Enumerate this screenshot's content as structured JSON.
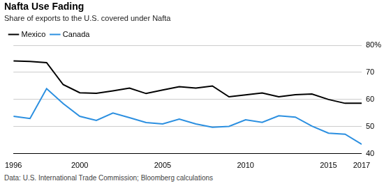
{
  "chart_data": {
    "type": "line",
    "title": "Nafta Use Fading",
    "subtitle": "Share of exports to the U.S. covered under Nafta",
    "source": "Data: U.S. International Trade Commission; Bloomberg calculations",
    "x": [
      1996,
      1997,
      1998,
      1999,
      2000,
      2001,
      2002,
      2003,
      2004,
      2005,
      2006,
      2007,
      2008,
      2009,
      2010,
      2011,
      2012,
      2013,
      2014,
      2015,
      2016,
      2017
    ],
    "series": [
      {
        "name": "Mexico",
        "color": "#000000",
        "values": [
          74.2,
          74.0,
          73.6,
          65.5,
          62.5,
          62.3,
          63.2,
          64.2,
          62.2,
          63.5,
          64.7,
          64.2,
          65.0,
          61.0,
          61.7,
          62.4,
          61.0,
          61.8,
          62.0,
          60.0,
          58.6,
          58.6
        ]
      },
      {
        "name": "Canada",
        "color": "#2b8fe0",
        "values": [
          53.8,
          53.0,
          64.0,
          58.5,
          53.8,
          52.3,
          55.0,
          53.3,
          51.5,
          51.0,
          52.8,
          51.0,
          49.8,
          50.1,
          52.5,
          51.6,
          54.0,
          53.5,
          50.2,
          47.6,
          47.2,
          43.5
        ]
      }
    ],
    "xlim": [
      1996,
      2017
    ],
    "xticks": [
      1996,
      2000,
      2005,
      2010,
      2015,
      2017
    ],
    "ylim": [
      40,
      80
    ],
    "yticks": [
      40,
      50,
      60,
      70,
      {
        "value": 80,
        "label": "80%"
      }
    ],
    "grid": true,
    "legend": "top-left"
  }
}
